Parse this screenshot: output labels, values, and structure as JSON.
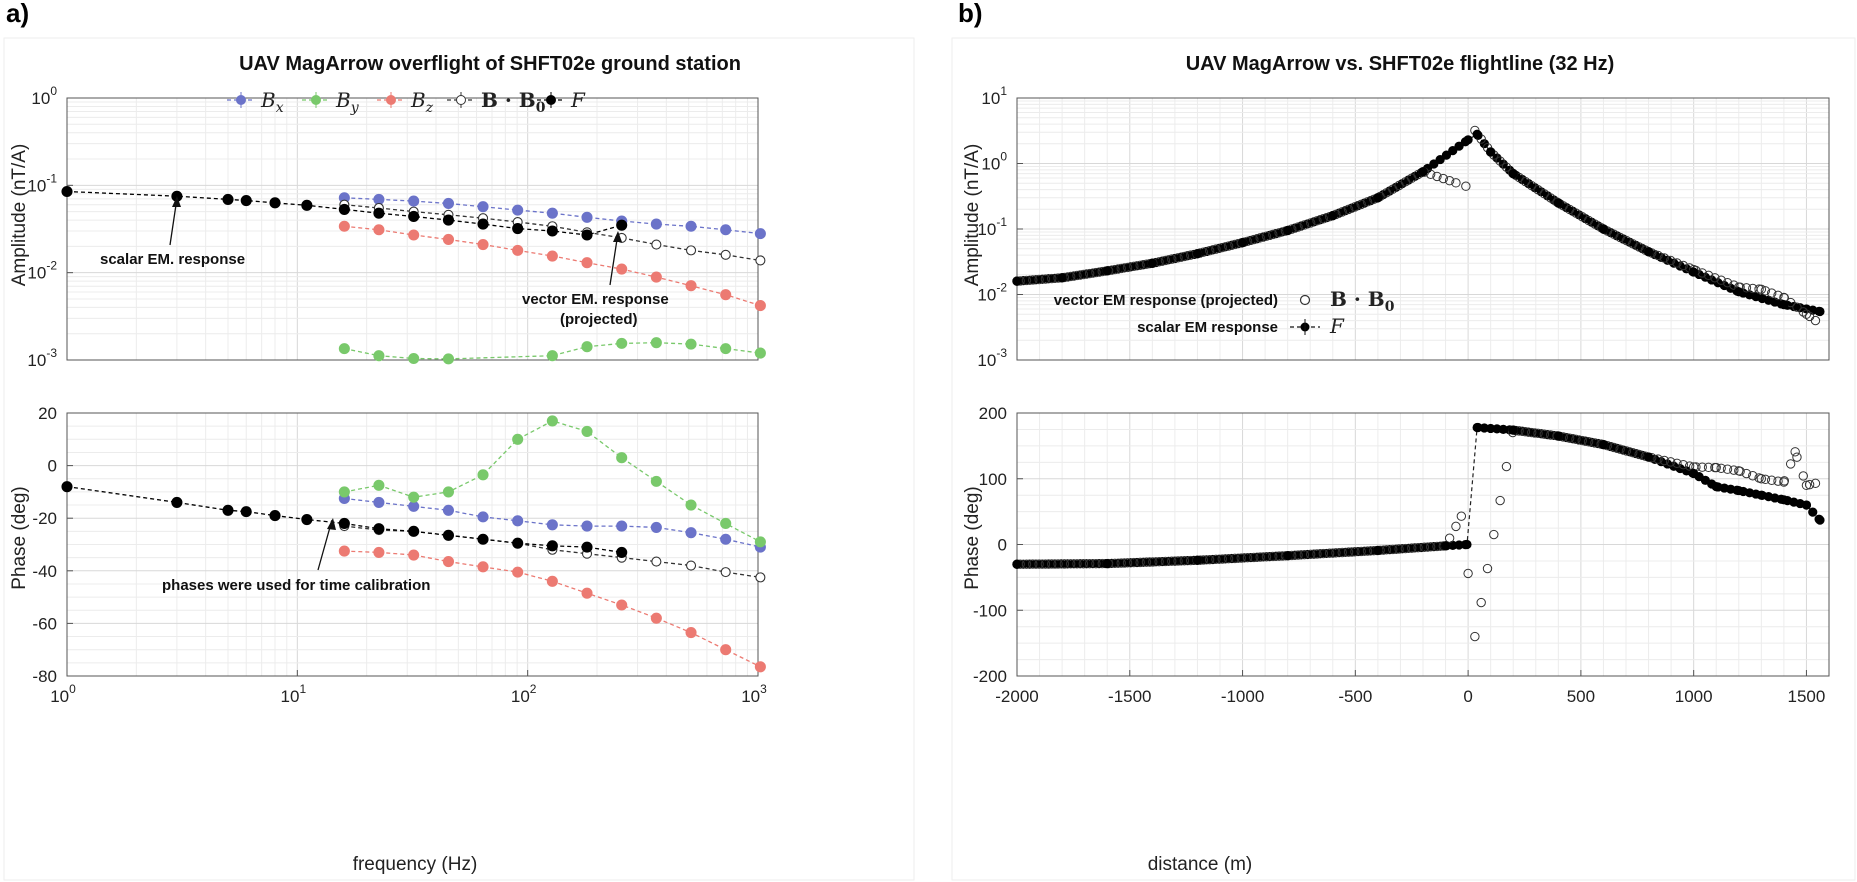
{
  "panels": {
    "left_tag": "a)",
    "right_tag": "b)"
  },
  "colors": {
    "Bx": "#6b73c9",
    "By": "#79c96b",
    "Bz": "#ec7a72",
    "BB0": "#333333",
    "F": "#000000"
  },
  "chart_data": [
    {
      "id": "left_amp",
      "type": "line",
      "title": "UAV MagArrow overflight of SHFT02e ground station",
      "xscale": "log",
      "yscale": "log",
      "xlim": [
        1,
        1000
      ],
      "ylim": [
        0.001,
        1
      ],
      "ylabel": "Amplitude (nT/A)",
      "xlabel": "",
      "grid": true,
      "legend_position": "top",
      "legend": [
        {
          "sym": "B",
          "sub": "x"
        },
        {
          "sym": "B",
          "sub": "y"
        },
        {
          "sym": "B",
          "sub": "z"
        },
        {
          "bold": "B · B",
          "sub": "0"
        },
        {
          "sym": "F",
          "sub": ""
        }
      ],
      "ytick_labels": [
        {
          "b": "10",
          "e": "-3"
        },
        {
          "b": "10",
          "e": "-2"
        },
        {
          "b": "10",
          "e": "-1"
        },
        {
          "b": "10",
          "e": "0"
        }
      ],
      "xtick_labels": [],
      "annotations": [
        "scalar EM. response",
        "vector EM. response",
        "(projected)"
      ],
      "series": [
        {
          "name": "Bx",
          "x": [
            16,
            22.6,
            32,
            45.3,
            64,
            90.5,
            128,
            181,
            256,
            362,
            512,
            724,
            1024
          ],
          "y": [
            0.072,
            0.069,
            0.066,
            0.062,
            0.057,
            0.052,
            0.048,
            0.043,
            0.039,
            0.036,
            0.034,
            0.031,
            0.028
          ]
        },
        {
          "name": "By",
          "x": [
            16,
            22.6,
            32,
            45.3,
            128,
            181,
            256,
            362,
            512,
            724,
            1024
          ],
          "y": [
            0.00135,
            0.00112,
            0.00104,
            0.00103,
            0.00112,
            0.00142,
            0.00155,
            0.00158,
            0.00152,
            0.00135,
            0.0012
          ]
        },
        {
          "name": "Bz",
          "x": [
            16,
            22.6,
            32,
            45.3,
            64,
            90.5,
            128,
            181,
            256,
            362,
            512,
            724,
            1024
          ],
          "y": [
            0.034,
            0.031,
            0.027,
            0.024,
            0.021,
            0.018,
            0.0155,
            0.013,
            0.011,
            0.0089,
            0.0071,
            0.0056,
            0.0042
          ]
        },
        {
          "name": "B·B0",
          "x": [
            16,
            22.6,
            32,
            45.3,
            64,
            90.5,
            128,
            181,
            256,
            362,
            512,
            724,
            1024
          ],
          "y": [
            0.06,
            0.055,
            0.05,
            0.046,
            0.042,
            0.038,
            0.034,
            0.029,
            0.025,
            0.021,
            0.018,
            0.016,
            0.0138
          ]
        },
        {
          "name": "F",
          "x": [
            1,
            3,
            5,
            6,
            8,
            11,
            16,
            22.6,
            32,
            45.3,
            64,
            90.5,
            128,
            181,
            256
          ],
          "y": [
            0.085,
            0.075,
            0.069,
            0.067,
            0.063,
            0.059,
            0.053,
            0.048,
            0.044,
            0.04,
            0.036,
            0.032,
            0.03,
            0.027,
            0.035
          ]
        }
      ]
    },
    {
      "id": "left_phase",
      "type": "line",
      "title": "",
      "xscale": "log",
      "xlim": [
        1,
        1000
      ],
      "ylim": [
        -80,
        20
      ],
      "ylabel": "Phase (deg)",
      "xlabel": "frequency (Hz)",
      "grid": true,
      "ytick_labels": [
        "-80",
        "-60",
        "-40",
        "-20",
        "0",
        "20"
      ],
      "xtick_labels": [
        {
          "b": "10",
          "e": "0"
        },
        {
          "b": "10",
          "e": "1"
        },
        {
          "b": "10",
          "e": "2"
        },
        {
          "b": "10",
          "e": "3"
        }
      ],
      "annotations": [
        "phases were used for time calibration"
      ],
      "series": [
        {
          "name": "Bx",
          "x": [
            16,
            22.6,
            32,
            45.3,
            64,
            90.5,
            128,
            181,
            256,
            362,
            512,
            724,
            1024
          ],
          "y": [
            -12.5,
            -14,
            -15.5,
            -17,
            -19.5,
            -21,
            -22.5,
            -23,
            -23,
            -23.5,
            -25.5,
            -28,
            -31
          ]
        },
        {
          "name": "By",
          "x": [
            16,
            22.6,
            32,
            45.3,
            64,
            90.5,
            128,
            181,
            256,
            362,
            512,
            724,
            1024
          ],
          "y": [
            -10,
            -7.5,
            -12,
            -10,
            -3.5,
            10,
            17,
            13,
            3,
            -6,
            -15,
            -22,
            -29
          ]
        },
        {
          "name": "Bz",
          "x": [
            16,
            22.6,
            32,
            45.3,
            64,
            90.5,
            128,
            181,
            256,
            362,
            512,
            724,
            1024
          ],
          "y": [
            -32.5,
            -33,
            -34,
            -36.5,
            -38.5,
            -40.5,
            -44,
            -48.5,
            -53,
            -58,
            -63.5,
            -70,
            -76.5
          ]
        },
        {
          "name": "B·B0",
          "x": [
            16,
            22.6,
            32,
            45.3,
            64,
            90.5,
            128,
            181,
            256,
            362,
            512,
            724,
            1024
          ],
          "y": [
            -23,
            -24.5,
            -25,
            -26.5,
            -28,
            -29.5,
            -32,
            -33.5,
            -35,
            -36.5,
            -38,
            -40.5,
            -42.5
          ]
        },
        {
          "name": "F",
          "x": [
            1,
            3,
            5,
            6,
            8,
            11,
            16,
            22.6,
            32,
            45.3,
            64,
            90.5,
            128,
            181,
            256
          ],
          "y": [
            -8,
            -14,
            -17,
            -17.5,
            -19,
            -20.5,
            -22,
            -24,
            -25,
            -26.5,
            -28,
            -29.5,
            -30.5,
            -31,
            -33
          ]
        }
      ]
    },
    {
      "id": "right_amp",
      "type": "scatter",
      "title": "UAV MagArrow vs. SHFT02e flightline (32 Hz)",
      "yscale": "log",
      "xlim": [
        -2000,
        1600
      ],
      "ylim": [
        0.001,
        10
      ],
      "ylabel": "Amplitude (nT/A)",
      "xlabel": "",
      "grid": true,
      "legend_position": "lower-center",
      "legend": [
        {
          "text": "vector EM response (projected)",
          "bold": "B · B",
          "sub": "0"
        },
        {
          "text": "scalar EM response",
          "sym": "F"
        }
      ],
      "ytick_labels": [
        {
          "b": "10",
          "e": "-3"
        },
        {
          "b": "10",
          "e": "-2"
        },
        {
          "b": "10",
          "e": "-1"
        },
        {
          "b": "10",
          "e": "0"
        },
        {
          "b": "10",
          "e": "1"
        }
      ],
      "xtick_labels": [],
      "series": [
        {
          "name": "F",
          "x": [
            -2000,
            -1800,
            -1600,
            -1400,
            -1200,
            -1000,
            -800,
            -600,
            -400,
            -200,
            0,
            40,
            100,
            200,
            400,
            600,
            800,
            1000,
            1200,
            1400,
            1560
          ],
          "y": [
            0.016,
            0.018,
            0.023,
            0.03,
            0.042,
            0.062,
            0.095,
            0.16,
            0.3,
            0.75,
            2.3,
            2.8,
            1.5,
            0.7,
            0.25,
            0.1,
            0.045,
            0.022,
            0.011,
            0.007,
            0.0055
          ]
        },
        {
          "name": "B·B0",
          "x": [
            -2000,
            -1800,
            -1600,
            -1400,
            -1200,
            -1000,
            -800,
            -600,
            -400,
            -200,
            -10,
            30,
            100,
            200,
            400,
            600,
            800,
            1000,
            1200,
            1300,
            1400,
            1500,
            1540
          ],
          "y": [
            0.016,
            0.018,
            0.023,
            0.03,
            0.042,
            0.062,
            0.095,
            0.16,
            0.3,
            0.75,
            0.45,
            3.2,
            1.5,
            0.7,
            0.25,
            0.1,
            0.045,
            0.024,
            0.013,
            0.012,
            0.009,
            0.005,
            0.004
          ]
        }
      ]
    },
    {
      "id": "right_phase",
      "type": "scatter",
      "title": "",
      "xlim": [
        -2000,
        1600
      ],
      "ylim": [
        -200,
        200
      ],
      "ylabel": "Phase (deg)",
      "xlabel": "distance (m)",
      "grid": true,
      "ytick_labels": [
        "-200",
        "-100",
        "0",
        "100",
        "200"
      ],
      "xtick_labels": [
        "-2000",
        "-1500",
        "-1000",
        "-500",
        "0",
        "500",
        "1000",
        "1500"
      ],
      "series": [
        {
          "name": "F",
          "x": [
            -2000,
            -1600,
            -1200,
            -800,
            -400,
            -100,
            -5,
            40,
            200,
            400,
            600,
            800,
            1000,
            1100,
            1200,
            1300,
            1400,
            1500,
            1560
          ],
          "y": [
            -30,
            -29,
            -24,
            -17,
            -9,
            -2,
            0,
            178,
            174,
            165,
            152,
            133,
            108,
            88,
            82,
            75,
            68,
            60,
            37
          ]
        },
        {
          "name": "B·B0",
          "x": [
            -2000,
            -1600,
            -1200,
            -800,
            -400,
            -100,
            -30,
            0,
            30,
            200,
            400,
            600,
            800,
            1000,
            1100,
            1200,
            1300,
            1400,
            1450,
            1500,
            1540
          ],
          "y": [
            -30,
            -29,
            -24,
            -17,
            -9,
            -2,
            43,
            -44,
            -140,
            174,
            165,
            152,
            133,
            118,
            117,
            112,
            100,
            95,
            141,
            90,
            93
          ]
        }
      ]
    }
  ]
}
